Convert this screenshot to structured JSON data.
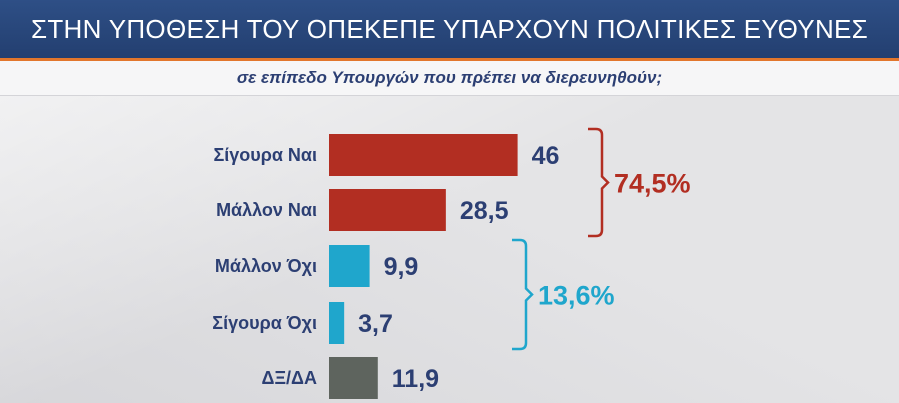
{
  "header": {
    "title": "ΣΤΗΝ ΥΠΟΘΕΣΗ ΤΟΥ ΟΠΕΚΕΠΕ ΥΠΑΡΧΟΥΝ ΠΟΛΙΤΙΚΕΣ ΕΥΘΥΝΕΣ"
  },
  "subheader": {
    "text": "σε επίπεδο Υπουργών που πρέπει να διερευνηθούν;"
  },
  "colors": {
    "red": "#b22e22",
    "cyan": "#1fa6cc",
    "gray": "#5e645e",
    "navy": "#2c3f73",
    "accent": "#e2762c"
  },
  "chart_data": {
    "type": "bar",
    "orientation": "horizontal",
    "title": "ΣΤΗΝ ΥΠΟΘΕΣΗ ΤΟΥ ΟΠΕΚΕΠΕ ΥΠΑΡΧΟΥΝ ΠΟΛΙΤΙΚΕΣ ΕΥΘΥΝΕΣ",
    "subtitle": "σε επίπεδο Υπουργών που πρέπει να διερευνηθούν;",
    "categories": [
      "Σίγουρα Ναι",
      "Μάλλον Ναι",
      "Μάλλον Όχι",
      "Σίγουρα Όχι",
      "ΔΞ/ΔΑ"
    ],
    "values": [
      46,
      28.5,
      9.9,
      3.7,
      11.9
    ],
    "value_labels": [
      "46",
      "28,5",
      "9,9",
      "3,7",
      "11,9"
    ],
    "bar_colors": [
      "#b22e22",
      "#b22e22",
      "#1fa6cc",
      "#1fa6cc",
      "#5e645e"
    ],
    "groups": [
      {
        "label": "74,5%",
        "from": 0,
        "to": 1,
        "color": "#b22e22"
      },
      {
        "label": "13,6%",
        "from": 2,
        "to": 3,
        "color": "#1fa6cc"
      }
    ],
    "grid": false,
    "legend": "none"
  }
}
